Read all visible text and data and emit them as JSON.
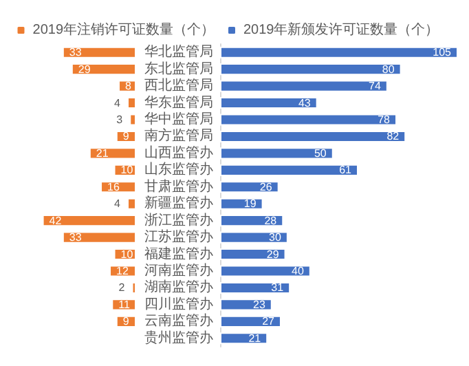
{
  "chart_data": [
    {
      "type": "bar",
      "orientation": "horizontal",
      "data_labels": true,
      "legend": "top",
      "tick_labels": "y",
      "categories": [
        "华北监管局",
        "东北监管局",
        "西北监管局",
        "华东监管局",
        "华中监管局",
        "南方监管局",
        "山西监管办",
        "山东监管办",
        "甘肃监管办",
        "新疆监管办",
        "浙江监管办",
        "江苏监管办",
        "福建监管办",
        "河南监管办",
        "湖南监管办",
        "四川监管办",
        "云南监管办",
        "贵州监管办"
      ],
      "series": [
        {
          "name": "2019年注销许可证数量（个）",
          "color": "#ed7d31",
          "values": [
            33,
            29,
            8,
            4,
            3,
            9,
            21,
            10,
            16,
            4,
            42,
            33,
            10,
            12,
            2,
            11,
            9,
            null
          ]
        }
      ]
    },
    {
      "type": "bar",
      "orientation": "horizontal",
      "data_labels": true,
      "legend": "top",
      "series": [
        {
          "name": "2019年新颁发许可证数量（个）",
          "color": "#4472c4",
          "values": [
            105,
            80,
            74,
            43,
            78,
            82,
            50,
            61,
            26,
            19,
            28,
            30,
            29,
            40,
            31,
            23,
            27,
            21
          ]
        }
      ]
    }
  ]
}
